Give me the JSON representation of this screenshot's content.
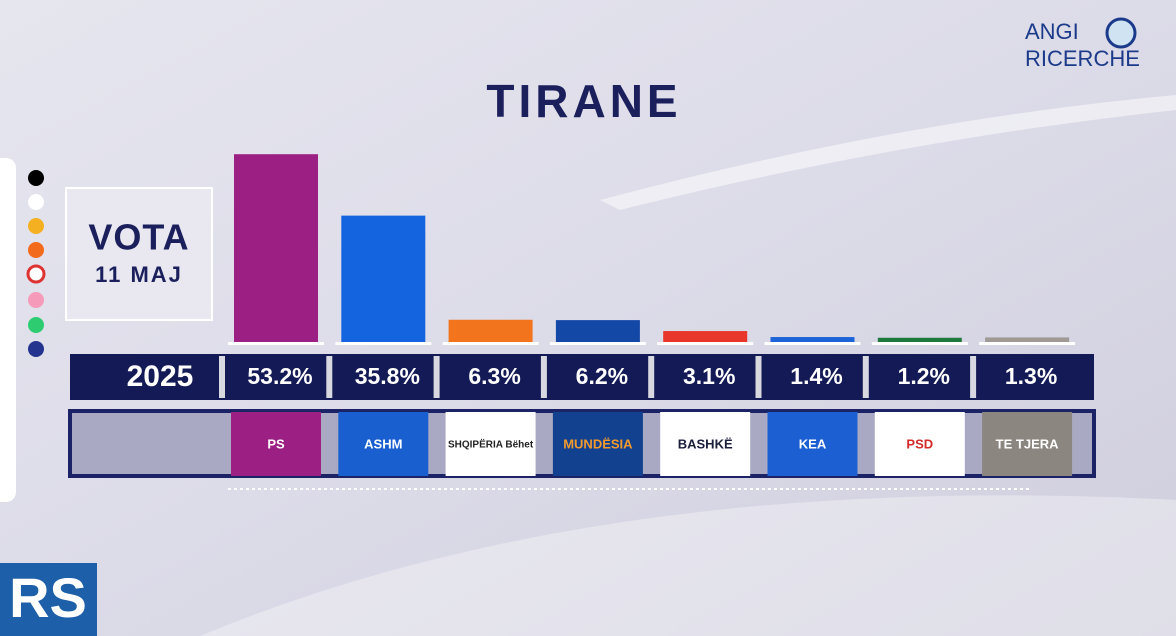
{
  "chart_data": {
    "type": "bar",
    "title": "TIRANE",
    "label": "VOTA",
    "date": "11 MAJ",
    "year": "2025",
    "categories": [
      "PS",
      "ASHM",
      "SHQIPËRIA Bëhet",
      "MUNDËSIA",
      "BASHKË",
      "KEA",
      "PSD",
      "TE TJERA"
    ],
    "values": [
      53.2,
      35.8,
      6.3,
      6.2,
      3.1,
      1.4,
      1.2,
      1.3
    ],
    "value_labels": [
      "53.2%",
      "35.8%",
      "6.3%",
      "6.2%",
      "3.1%",
      "1.4%",
      "1.2%",
      "1.3%"
    ],
    "colors": [
      "#9c1f84",
      "#1464e0",
      "#f2741c",
      "#1448a6",
      "#e8362a",
      "#1c64d8",
      "#1e7a3c",
      "#a09a94"
    ]
  },
  "branding": {
    "pollster_line1": "ANGI",
    "pollster_line2": "RICERCHE",
    "channel": "RS"
  }
}
